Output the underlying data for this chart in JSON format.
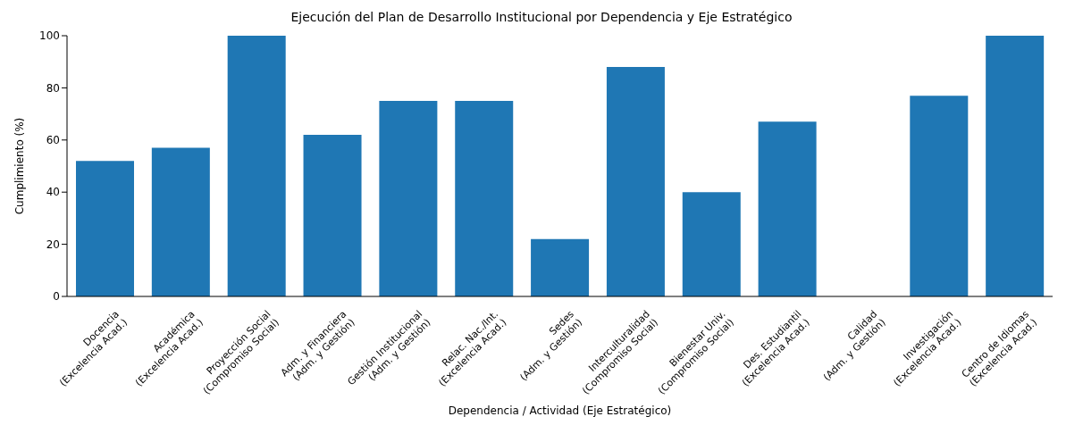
{
  "chart_data": {
    "type": "bar",
    "title": "Ejecución del Plan de Desarrollo Institucional por Dependencia y Eje Estratégico",
    "xlabel": "Dependencia / Actividad (Eje Estratégico)",
    "ylabel": "Cumplimiento (%)",
    "categories": [
      "Docencia\n(Excelencia Acad.)",
      "Académica\n(Excelencia Acad.)",
      "Proyección Social\n(Compromiso Social)",
      "Adm. y Financiera\n(Adm. y Gestión)",
      "Gestión Institucional\n(Adm. y Gestión)",
      "Relac. Nac./Int.\n(Excelencia Acad.)",
      "Sedes\n(Adm. y Gestión)",
      "Interculturalidad\n(Compromiso Social)",
      "Bienestar Univ.\n(Compromiso Social)",
      "Des. Estudiantil\n(Excelencia Acad.)",
      "Calidad\n(Adm. y Gestión)",
      "Investigación\n(Excelencia Acad.)",
      "Centro de Idiomas\n(Excelencia Acad.)"
    ],
    "values": [
      52,
      57,
      100,
      62,
      75,
      75,
      22,
      88,
      40,
      67,
      0,
      77,
      100
    ],
    "color": "#1f77b4",
    "ylim": [
      0,
      100
    ],
    "yticks": [
      0,
      20,
      40,
      60,
      80,
      100
    ]
  }
}
